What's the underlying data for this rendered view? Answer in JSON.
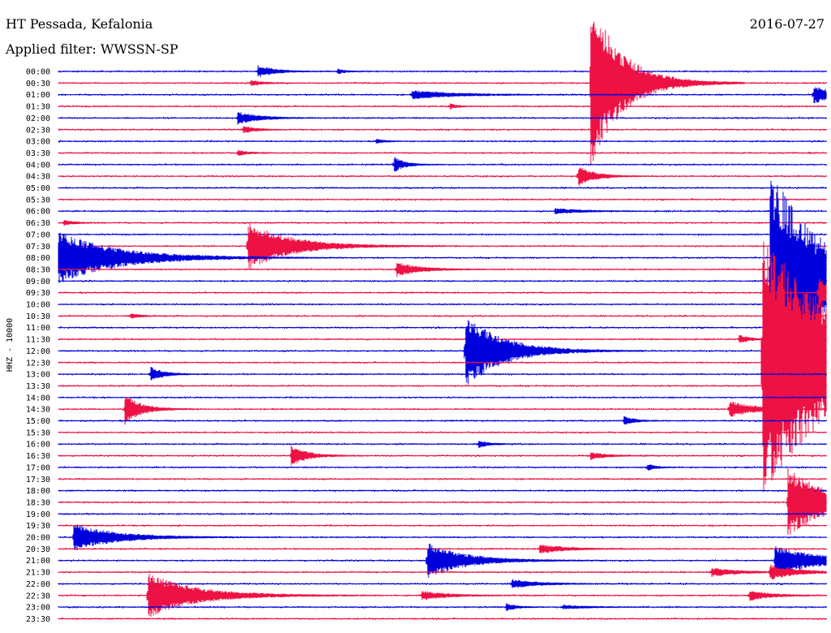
{
  "header": {
    "station": "HT Pessada, Kefalonia",
    "date": "2016-07-27",
    "filter_label": "Applied filter: WWSSN-SP"
  },
  "chart_data": {
    "type": "line",
    "kind": "helicorder",
    "ylabel": "HHZ - 10000",
    "row_labels": [
      "00:00",
      "00:30",
      "01:00",
      "01:30",
      "02:00",
      "02:30",
      "03:00",
      "03:30",
      "04:00",
      "04:30",
      "05:00",
      "05:30",
      "06:00",
      "06:30",
      "07:00",
      "07:30",
      "08:00",
      "08:30",
      "09:00",
      "09:30",
      "10:00",
      "10:30",
      "11:00",
      "11:30",
      "12:00",
      "12:30",
      "13:00",
      "13:30",
      "14:00",
      "14:30",
      "15:00",
      "15:30",
      "16:00",
      "16:30",
      "17:00",
      "17:30",
      "18:00",
      "18:30",
      "19:00",
      "19:30",
      "20:00",
      "20:30",
      "21:00",
      "21:30",
      "22:00",
      "22:30",
      "23:00",
      "23:30"
    ],
    "row_minutes": 30,
    "trace_colors": [
      "#0000dd",
      "#ee1144"
    ],
    "events": [
      {
        "row": 0,
        "minute": 7.8,
        "amp": 7,
        "dur": 0.6
      },
      {
        "row": 0,
        "minute": 10.9,
        "amp": 3,
        "dur": 0.3
      },
      {
        "row": 1,
        "minute": 7.5,
        "amp": 3,
        "dur": 0.5
      },
      {
        "row": 1,
        "minute": 20.8,
        "amp": 95,
        "dur": 1.2
      },
      {
        "row": 2,
        "minute": 13.8,
        "amp": 5,
        "dur": 1.6
      },
      {
        "row": 2,
        "minute": 29.5,
        "amp": 11,
        "dur": 0.7
      },
      {
        "row": 3,
        "minute": 15.3,
        "amp": 3,
        "dur": 0.3
      },
      {
        "row": 4,
        "minute": 7.0,
        "amp": 7,
        "dur": 0.8
      },
      {
        "row": 5,
        "minute": 7.2,
        "amp": 4,
        "dur": 0.5
      },
      {
        "row": 6,
        "minute": 12.4,
        "amp": 3,
        "dur": 0.3
      },
      {
        "row": 7,
        "minute": 7.0,
        "amp": 3,
        "dur": 0.4
      },
      {
        "row": 8,
        "minute": 13.1,
        "amp": 9,
        "dur": 0.4
      },
      {
        "row": 9,
        "minute": 20.3,
        "amp": 12,
        "dur": 0.6
      },
      {
        "row": 12,
        "minute": 19.4,
        "amp": 3,
        "dur": 1.0
      },
      {
        "row": 13,
        "minute": 0.2,
        "amp": 3,
        "dur": 0.4
      },
      {
        "row": 15,
        "minute": 7.4,
        "amp": 27,
        "dur": 1.6
      },
      {
        "row": 16,
        "minute": 0.0,
        "amp": 30,
        "dur": 2.2
      },
      {
        "row": 16,
        "minute": 29.6,
        "amp": 10,
        "dur": 0.4
      },
      {
        "row": 17,
        "minute": 13.2,
        "amp": 8,
        "dur": 0.9
      },
      {
        "row": 18,
        "minute": 27.8,
        "amp": 130,
        "dur": 2.0
      },
      {
        "row": 19,
        "minute": 29.7,
        "amp": 18,
        "dur": 0.5
      },
      {
        "row": 21,
        "minute": 2.8,
        "amp": 3,
        "dur": 0.4
      },
      {
        "row": 23,
        "minute": 26.6,
        "amp": 5,
        "dur": 0.4
      },
      {
        "row": 24,
        "minute": 15.9,
        "amp": 42,
        "dur": 1.4
      },
      {
        "row": 25,
        "minute": 27.5,
        "amp": 150,
        "dur": 3.0
      },
      {
        "row": 26,
        "minute": 3.6,
        "amp": 8,
        "dur": 0.5
      },
      {
        "row": 29,
        "minute": 2.6,
        "amp": 17,
        "dur": 0.6
      },
      {
        "row": 29,
        "minute": 26.2,
        "amp": 9,
        "dur": 1.0
      },
      {
        "row": 30,
        "minute": 22.1,
        "amp": 5,
        "dur": 0.4
      },
      {
        "row": 32,
        "minute": 16.4,
        "amp": 4,
        "dur": 0.4
      },
      {
        "row": 33,
        "minute": 9.1,
        "amp": 12,
        "dur": 0.6
      },
      {
        "row": 33,
        "minute": 20.8,
        "amp": 4,
        "dur": 0.6
      },
      {
        "row": 34,
        "minute": 23.0,
        "amp": 4,
        "dur": 0.3
      },
      {
        "row": 36,
        "minute": 29.2,
        "amp": 4,
        "dur": 0.3
      },
      {
        "row": 37,
        "minute": 28.5,
        "amp": 38,
        "dur": 1.6
      },
      {
        "row": 40,
        "minute": 0.6,
        "amp": 15,
        "dur": 1.6
      },
      {
        "row": 41,
        "minute": 18.8,
        "amp": 5,
        "dur": 1.0
      },
      {
        "row": 42,
        "minute": 14.4,
        "amp": 20,
        "dur": 1.4
      },
      {
        "row": 42,
        "minute": 28.0,
        "amp": 16,
        "dur": 1.8
      },
      {
        "row": 43,
        "minute": 25.5,
        "amp": 5,
        "dur": 1.0
      },
      {
        "row": 43,
        "minute": 27.8,
        "amp": 8,
        "dur": 1.0
      },
      {
        "row": 44,
        "minute": 17.7,
        "amp": 5,
        "dur": 1.0
      },
      {
        "row": 45,
        "minute": 3.5,
        "amp": 25,
        "dur": 1.8
      },
      {
        "row": 45,
        "minute": 14.2,
        "amp": 5,
        "dur": 1.0
      },
      {
        "row": 45,
        "minute": 27.0,
        "amp": 6,
        "dur": 0.8
      },
      {
        "row": 46,
        "minute": 17.5,
        "amp": 4,
        "dur": 0.4
      },
      {
        "row": 46,
        "minute": 19.7,
        "amp": 2,
        "dur": 1.0
      }
    ]
  }
}
